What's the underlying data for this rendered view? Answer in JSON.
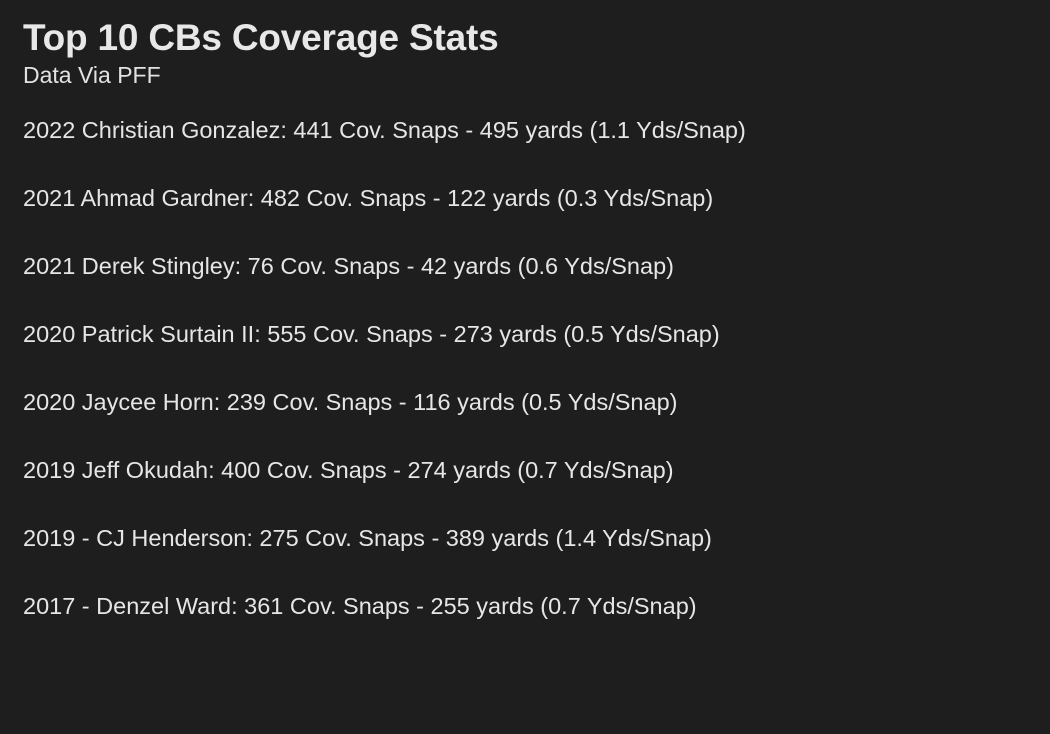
{
  "note": {
    "title": "Top 10 CBs Coverage Stats",
    "subtitle": "Data Via PFF",
    "lines": [
      "2022 Christian Gonzalez: 441 Cov. Snaps - 495 yards (1.1 Yds/Snap)",
      "2021 Ahmad Gardner: 482 Cov. Snaps - 122 yards (0.3 Yds/Snap)",
      "2021 Derek Stingley: 76 Cov. Snaps - 42 yards (0.6 Yds/Snap)",
      "2020 Patrick Surtain II: 555 Cov. Snaps - 273 yards (0.5 Yds/Snap)",
      "2020 Jaycee Horn: 239 Cov. Snaps - 116 yards (0.5 Yds/Snap)",
      "2019 Jeff Okudah: 400 Cov. Snaps - 274 yards (0.7 Yds/Snap)",
      "2019 - CJ Henderson: 275 Cov. Snaps - 389 yards (1.4 Yds/Snap)",
      "2017 - Denzel Ward: 361 Cov. Snaps - 255 yards (0.7 Yds/Snap)"
    ]
  }
}
